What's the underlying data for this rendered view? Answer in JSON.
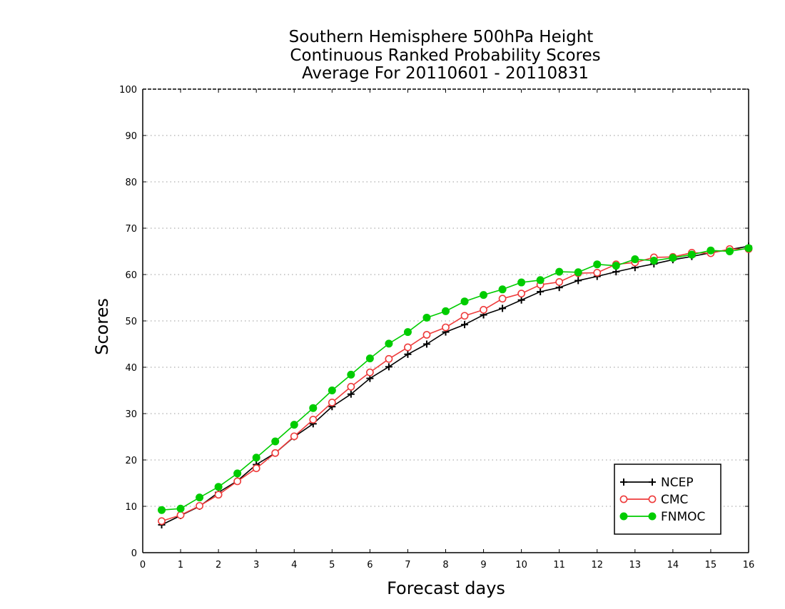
{
  "chart_data": {
    "type": "line",
    "title_lines": [
      "Southern Hemisphere 500hPa Height",
      "Continuous Ranked Probability Scores",
      "Average For 20110601 - 20110831"
    ],
    "xlabel": "Forecast days",
    "ylabel": "Scores",
    "xlim": [
      0,
      16
    ],
    "ylim": [
      0,
      100
    ],
    "xticks": [
      0,
      1,
      2,
      3,
      4,
      5,
      6,
      7,
      8,
      9,
      10,
      11,
      12,
      13,
      14,
      15,
      16
    ],
    "yticks": [
      0,
      10,
      20,
      30,
      40,
      50,
      60,
      70,
      80,
      90,
      100
    ],
    "grid": "horizontal dotted",
    "legend_position": "bottom-right",
    "x": [
      0.5,
      1.0,
      1.5,
      2.0,
      2.5,
      3.0,
      3.5,
      4.0,
      4.5,
      5.0,
      5.5,
      6.0,
      6.5,
      7.0,
      7.5,
      8.0,
      8.5,
      9.0,
      9.5,
      10.0,
      10.5,
      11.0,
      11.5,
      12.0,
      12.5,
      13.0,
      13.5,
      14.0,
      14.5,
      15.0,
      15.5,
      16.0
    ],
    "series": [
      {
        "name": "NCEP",
        "color": "#000000",
        "marker": "plus",
        "values": [
          6.0,
          8.0,
          10.0,
          13.0,
          15.5,
          19.0,
          21.5,
          25.0,
          27.8,
          31.5,
          34.2,
          37.6,
          40.1,
          42.8,
          45.0,
          47.6,
          49.2,
          51.3,
          52.7,
          54.5,
          56.3,
          57.2,
          58.7,
          59.6,
          60.6,
          61.5,
          62.3,
          63.2,
          63.9,
          64.7,
          65.4,
          66.1
        ]
      },
      {
        "name": "CMC",
        "color": "#ee3b3b",
        "marker": "open-circle",
        "values": [
          6.8,
          8.1,
          10.1,
          12.5,
          15.4,
          18.2,
          21.5,
          25.1,
          28.7,
          32.4,
          35.8,
          38.9,
          41.8,
          44.3,
          47.0,
          48.6,
          51.1,
          52.4,
          54.8,
          55.9,
          57.8,
          58.4,
          60.3,
          60.4,
          62.2,
          62.6,
          63.7,
          63.8,
          64.7,
          64.6,
          65.5,
          65.5
        ]
      },
      {
        "name": "FNMOC",
        "color": "#00cc00",
        "marker": "filled-circle",
        "values": [
          9.2,
          9.5,
          11.9,
          14.2,
          17.1,
          20.5,
          24.0,
          27.6,
          31.2,
          35.0,
          38.4,
          41.9,
          45.1,
          47.6,
          50.7,
          52.1,
          54.2,
          55.6,
          56.8,
          58.3,
          58.8,
          60.6,
          60.5,
          62.2,
          61.9,
          63.3,
          63.0,
          63.6,
          64.3,
          65.2,
          65.0,
          65.7
        ]
      }
    ]
  }
}
